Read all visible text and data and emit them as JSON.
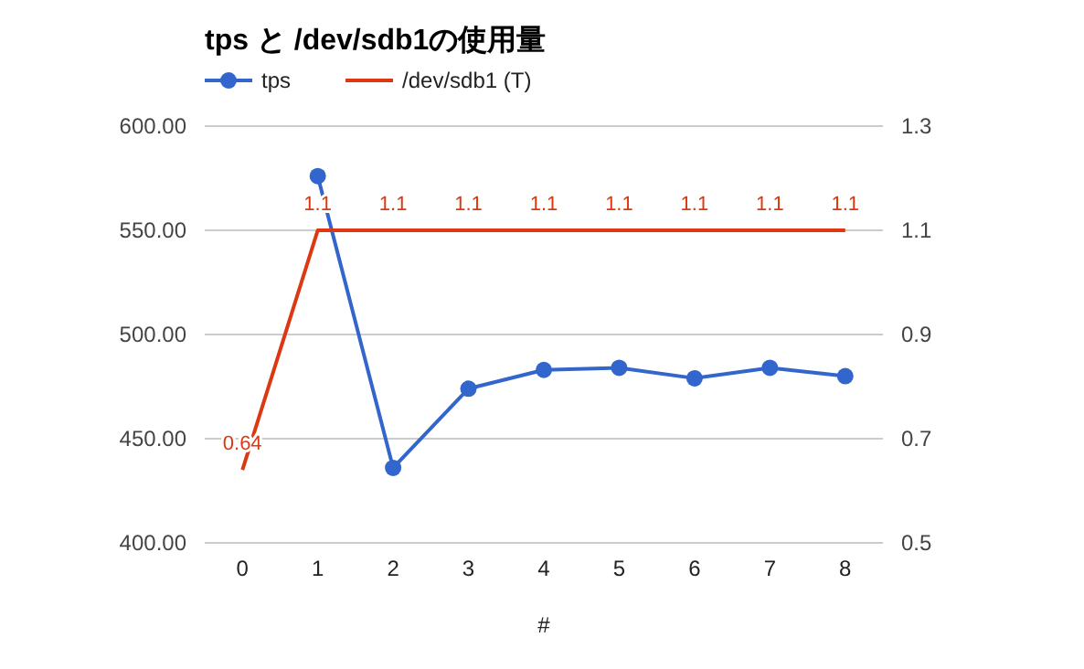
{
  "chart_data": {
    "type": "line",
    "title": "tps と /dev/sdb1の使用量",
    "xlabel": "#",
    "categories": [
      "0",
      "1",
      "2",
      "3",
      "4",
      "5",
      "6",
      "7",
      "8"
    ],
    "series": [
      {
        "name": "tps",
        "color": "#3366cc",
        "marker": "circle",
        "values": [
          null,
          576,
          436,
          474,
          483,
          484,
          479,
          484,
          480
        ]
      },
      {
        "name": "/dev/sdb1 (T)",
        "color": "#dc3912",
        "axis": "y2",
        "marker": "none",
        "values": [
          0.64,
          1.1,
          1.1,
          1.1,
          1.1,
          1.1,
          1.1,
          1.1,
          1.1
        ],
        "value_labels": [
          "0.64",
          "1.1",
          "1.1",
          "1.1",
          "1.1",
          "1.1",
          "1.1",
          "1.1",
          "1.1"
        ]
      }
    ],
    "ylim": [
      400,
      600
    ],
    "yticks": [
      {
        "value": 400,
        "label": "400.00"
      },
      {
        "value": 450,
        "label": "450.00"
      },
      {
        "value": 500,
        "label": "500.00"
      },
      {
        "value": 550,
        "label": "550.00"
      },
      {
        "value": 600,
        "label": "600.00"
      }
    ],
    "y2lim": [
      0.5,
      1.3
    ],
    "y2ticks": [
      0.5,
      0.7,
      0.9,
      1.1,
      1.3
    ],
    "grid": "y",
    "legend": "top"
  }
}
